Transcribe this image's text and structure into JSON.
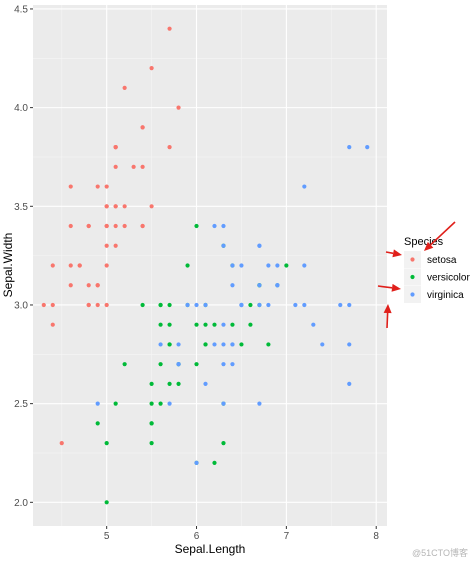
{
  "chart_data": {
    "type": "scatter",
    "xlabel": "Sepal.Length",
    "ylabel": "Sepal.Width",
    "xlim": [
      4.18,
      8.12
    ],
    "ylim": [
      1.88,
      4.52
    ],
    "x_ticks": [
      5,
      6,
      7,
      8
    ],
    "y_ticks": [
      2.0,
      2.5,
      3.0,
      3.5,
      4.0,
      4.5
    ],
    "y_tick_labels": [
      "2.0",
      "2.5",
      "3.0",
      "3.5",
      "4.0",
      "4.5"
    ],
    "grid": true,
    "legend": {
      "title": "Species",
      "placement": "right"
    },
    "series": [
      {
        "name": "setosa",
        "color": "#F8766D",
        "points": [
          [
            5.1,
            3.5
          ],
          [
            4.9,
            3.0
          ],
          [
            4.7,
            3.2
          ],
          [
            4.6,
            3.1
          ],
          [
            5.0,
            3.6
          ],
          [
            5.4,
            3.9
          ],
          [
            4.6,
            3.4
          ],
          [
            5.0,
            3.4
          ],
          [
            4.4,
            2.9
          ],
          [
            4.9,
            3.1
          ],
          [
            5.4,
            3.7
          ],
          [
            4.8,
            3.4
          ],
          [
            4.8,
            3.0
          ],
          [
            4.3,
            3.0
          ],
          [
            5.8,
            4.0
          ],
          [
            5.7,
            4.4
          ],
          [
            5.4,
            3.9
          ],
          [
            5.1,
            3.5
          ],
          [
            5.7,
            3.8
          ],
          [
            5.1,
            3.8
          ],
          [
            5.4,
            3.4
          ],
          [
            5.1,
            3.7
          ],
          [
            4.6,
            3.6
          ],
          [
            5.1,
            3.3
          ],
          [
            4.8,
            3.4
          ],
          [
            5.0,
            3.0
          ],
          [
            5.0,
            3.4
          ],
          [
            5.2,
            3.5
          ],
          [
            5.2,
            3.4
          ],
          [
            4.7,
            3.2
          ],
          [
            4.8,
            3.1
          ],
          [
            5.4,
            3.4
          ],
          [
            5.2,
            4.1
          ],
          [
            5.5,
            4.2
          ],
          [
            4.9,
            3.1
          ],
          [
            5.0,
            3.2
          ],
          [
            5.5,
            3.5
          ],
          [
            4.9,
            3.6
          ],
          [
            4.4,
            3.0
          ],
          [
            5.1,
            3.4
          ],
          [
            5.0,
            3.5
          ],
          [
            4.5,
            2.3
          ],
          [
            4.4,
            3.2
          ],
          [
            5.0,
            3.5
          ],
          [
            5.1,
            3.8
          ],
          [
            4.8,
            3.0
          ],
          [
            5.1,
            3.8
          ],
          [
            4.6,
            3.2
          ],
          [
            5.3,
            3.7
          ],
          [
            5.0,
            3.3
          ]
        ]
      },
      {
        "name": "versicolor",
        "color": "#00BA38",
        "points": [
          [
            7.0,
            3.2
          ],
          [
            6.4,
            3.2
          ],
          [
            6.9,
            3.1
          ],
          [
            5.5,
            2.3
          ],
          [
            6.5,
            2.8
          ],
          [
            5.7,
            2.8
          ],
          [
            6.3,
            3.3
          ],
          [
            4.9,
            2.4
          ],
          [
            6.6,
            2.9
          ],
          [
            5.2,
            2.7
          ],
          [
            5.0,
            2.0
          ],
          [
            5.9,
            3.0
          ],
          [
            6.0,
            2.2
          ],
          [
            6.1,
            2.9
          ],
          [
            5.6,
            2.9
          ],
          [
            6.7,
            3.1
          ],
          [
            5.6,
            3.0
          ],
          [
            5.8,
            2.7
          ],
          [
            6.2,
            2.2
          ],
          [
            5.6,
            2.5
          ],
          [
            5.9,
            3.2
          ],
          [
            6.1,
            2.8
          ],
          [
            6.3,
            2.5
          ],
          [
            6.1,
            2.8
          ],
          [
            6.4,
            2.9
          ],
          [
            6.6,
            3.0
          ],
          [
            6.8,
            2.8
          ],
          [
            6.7,
            3.0
          ],
          [
            6.0,
            2.9
          ],
          [
            5.7,
            2.6
          ],
          [
            5.5,
            2.4
          ],
          [
            5.5,
            2.4
          ],
          [
            5.8,
            2.7
          ],
          [
            6.0,
            2.7
          ],
          [
            5.4,
            3.0
          ],
          [
            6.0,
            3.4
          ],
          [
            6.7,
            3.1
          ],
          [
            6.3,
            2.3
          ],
          [
            5.6,
            3.0
          ],
          [
            5.5,
            2.5
          ],
          [
            5.5,
            2.6
          ],
          [
            6.1,
            3.0
          ],
          [
            5.8,
            2.6
          ],
          [
            5.0,
            2.3
          ],
          [
            5.6,
            2.7
          ],
          [
            5.7,
            3.0
          ],
          [
            5.7,
            2.9
          ],
          [
            6.2,
            2.9
          ],
          [
            5.1,
            2.5
          ],
          [
            5.7,
            2.8
          ]
        ]
      },
      {
        "name": "virginica",
        "color": "#619CFF",
        "points": [
          [
            6.3,
            3.3
          ],
          [
            5.8,
            2.7
          ],
          [
            7.1,
            3.0
          ],
          [
            6.3,
            2.9
          ],
          [
            6.5,
            3.0
          ],
          [
            7.6,
            3.0
          ],
          [
            4.9,
            2.5
          ],
          [
            7.3,
            2.9
          ],
          [
            6.7,
            2.5
          ],
          [
            7.2,
            3.6
          ],
          [
            6.5,
            3.2
          ],
          [
            6.4,
            2.7
          ],
          [
            6.8,
            3.0
          ],
          [
            5.7,
            2.5
          ],
          [
            5.8,
            2.8
          ],
          [
            6.4,
            3.2
          ],
          [
            6.5,
            3.0
          ],
          [
            7.7,
            3.8
          ],
          [
            7.7,
            2.6
          ],
          [
            6.0,
            2.2
          ],
          [
            6.9,
            3.2
          ],
          [
            5.6,
            2.8
          ],
          [
            7.7,
            2.8
          ],
          [
            6.3,
            2.7
          ],
          [
            6.7,
            3.3
          ],
          [
            7.2,
            3.2
          ],
          [
            6.2,
            2.8
          ],
          [
            6.1,
            3.0
          ],
          [
            6.4,
            2.8
          ],
          [
            7.2,
            3.0
          ],
          [
            7.4,
            2.8
          ],
          [
            7.9,
            3.8
          ],
          [
            6.4,
            2.8
          ],
          [
            6.3,
            2.8
          ],
          [
            6.1,
            2.6
          ],
          [
            7.7,
            3.0
          ],
          [
            6.3,
            3.4
          ],
          [
            6.4,
            3.1
          ],
          [
            6.0,
            3.0
          ],
          [
            6.9,
            3.1
          ],
          [
            6.7,
            3.1
          ],
          [
            6.9,
            3.1
          ],
          [
            5.8,
            2.7
          ],
          [
            6.8,
            3.2
          ],
          [
            6.7,
            3.3
          ],
          [
            6.7,
            3.0
          ],
          [
            6.3,
            2.5
          ],
          [
            6.5,
            3.0
          ],
          [
            6.2,
            3.4
          ],
          [
            5.9,
            3.0
          ]
        ]
      }
    ]
  },
  "watermark_text": "@51CTO博客"
}
